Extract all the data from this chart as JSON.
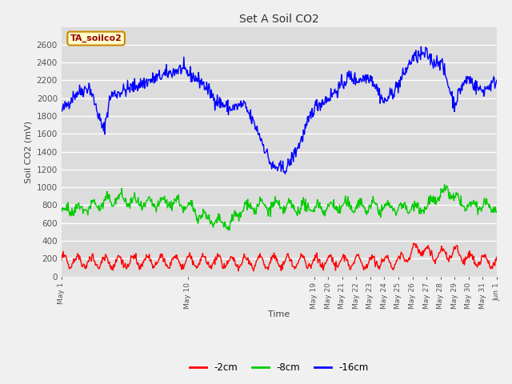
{
  "title": "Set A Soil CO2",
  "xlabel": "Time",
  "ylabel": "Soil CO2 (mV)",
  "annotation_text": "TA_soilco2",
  "annotation_bg": "#ffffcc",
  "annotation_border": "#cc8800",
  "annotation_text_color": "#990000",
  "fig_bg": "#f0f0f0",
  "plot_bg": "#dcdcdc",
  "ylim": [
    0,
    2800
  ],
  "yticks": [
    0,
    200,
    400,
    600,
    800,
    1000,
    1200,
    1400,
    1600,
    1800,
    2000,
    2200,
    2400,
    2600
  ],
  "xlim": [
    1,
    32
  ],
  "line_colors": {
    "2cm": "#ff0000",
    "8cm": "#00cc00",
    "16cm": "#0000ff"
  },
  "line_width": 1.0,
  "legend_labels": [
    "-2cm",
    "-8cm",
    "-16cm"
  ],
  "legend_colors": [
    "#ff0000",
    "#00cc00",
    "#0000ff"
  ],
  "xtick_labels": [
    "May 1",
    "May 10",
    "May 19",
    "May 20",
    "May 21",
    "May 22",
    "May 23",
    "May 24",
    "May 25",
    "May 26",
    "May 27",
    "May 28",
    "May 29",
    "May 30",
    "May 31",
    "Jun 1"
  ],
  "xtick_positions": [
    1,
    10,
    19,
    20,
    21,
    22,
    23,
    24,
    25,
    26,
    27,
    28,
    29,
    30,
    31,
    32
  ]
}
